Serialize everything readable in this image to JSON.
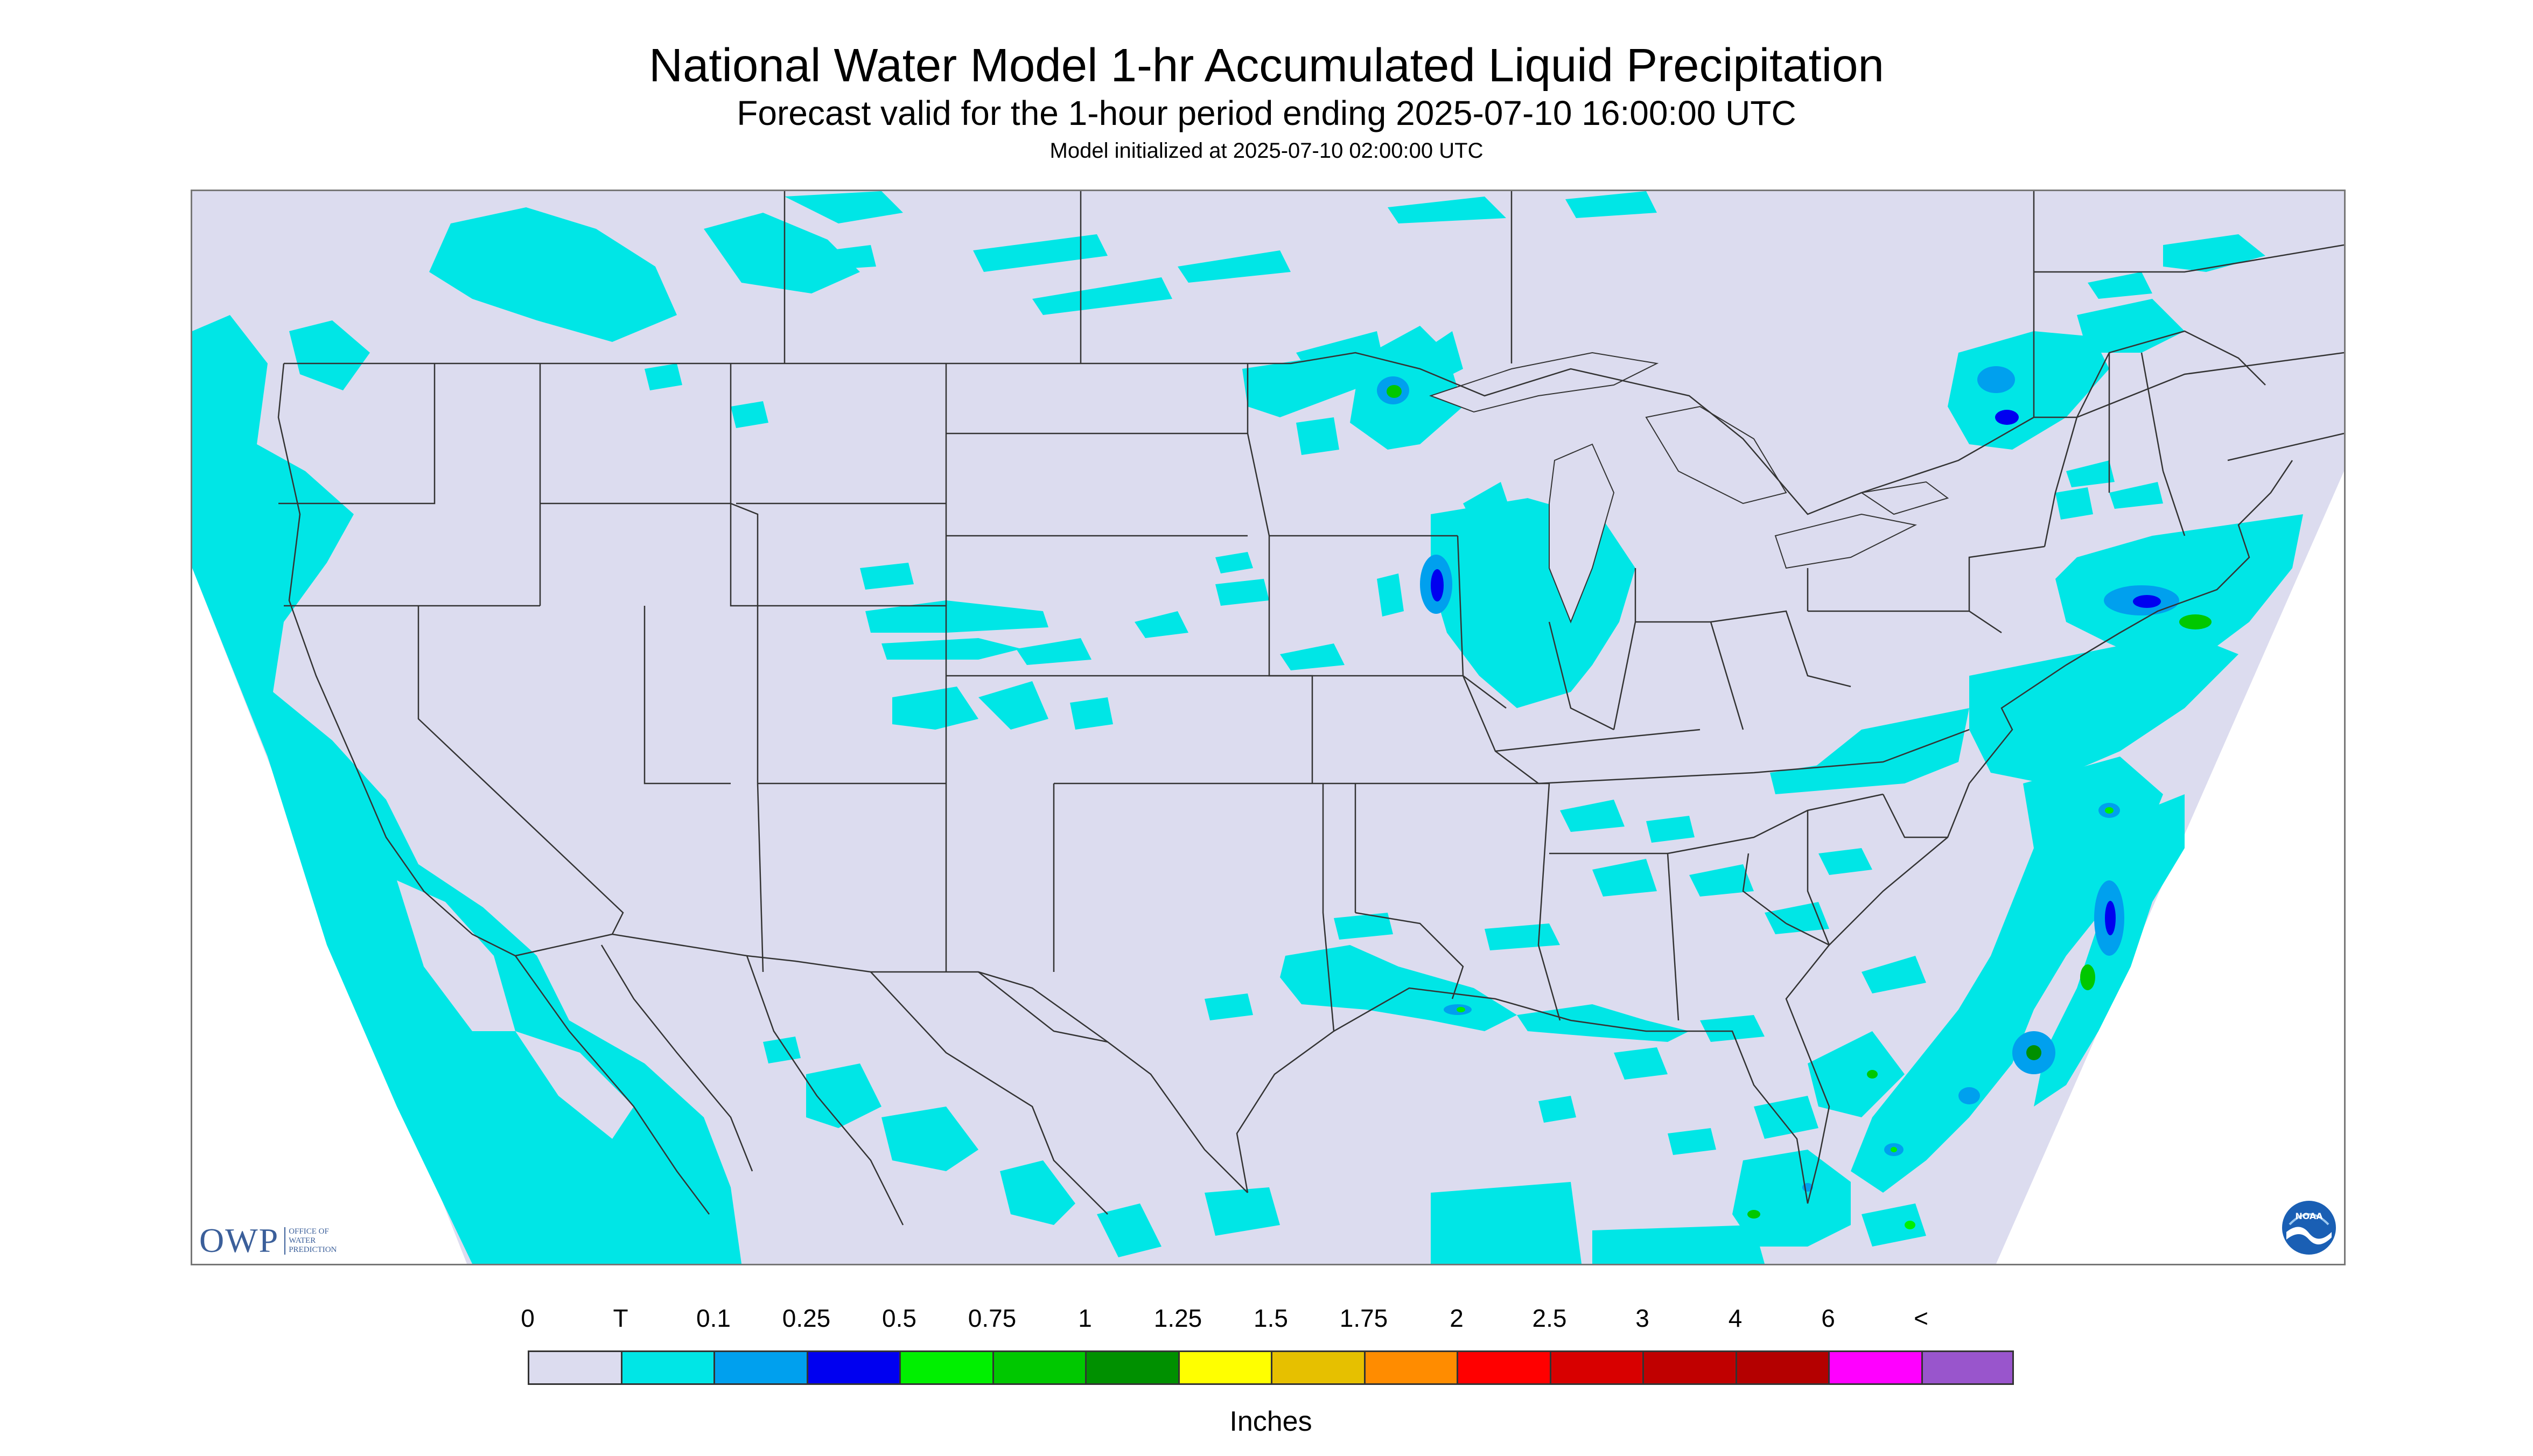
{
  "header": {
    "title": "National Water Model 1-hr Accumulated Liquid Precipitation",
    "subtitle": "Forecast valid for the 1-hour period ending 2025-07-10 16:00:00 UTC",
    "init_line": "Model initialized at 2025-07-10 02:00:00 UTC"
  },
  "colors": {
    "background_no_precip": "#dcdcef",
    "trace": "#00e6e6",
    "outside_domain": "#ffffff",
    "boundary": "#333333"
  },
  "logos": {
    "owp_abbrev": "OWP",
    "owp_full": "Office of Water Prediction",
    "noaa_abbrev": "NOAA"
  },
  "legend": {
    "labels": [
      "0",
      "T",
      "0.1",
      "0.25",
      "0.5",
      "0.75",
      "1",
      "1.25",
      "1.5",
      "1.75",
      "2",
      "2.5",
      "3",
      "4",
      "6",
      "<"
    ],
    "colors": [
      "#dcdcef",
      "#00e6e6",
      "#00a0ee",
      "#0000f0",
      "#00f000",
      "#00c800",
      "#009000",
      "#ffff00",
      "#e6c000",
      "#ff8c00",
      "#ff0000",
      "#d80000",
      "#c00000",
      "#b40000",
      "#ff00ff",
      "#9955cc"
    ],
    "units": "Inches"
  }
}
